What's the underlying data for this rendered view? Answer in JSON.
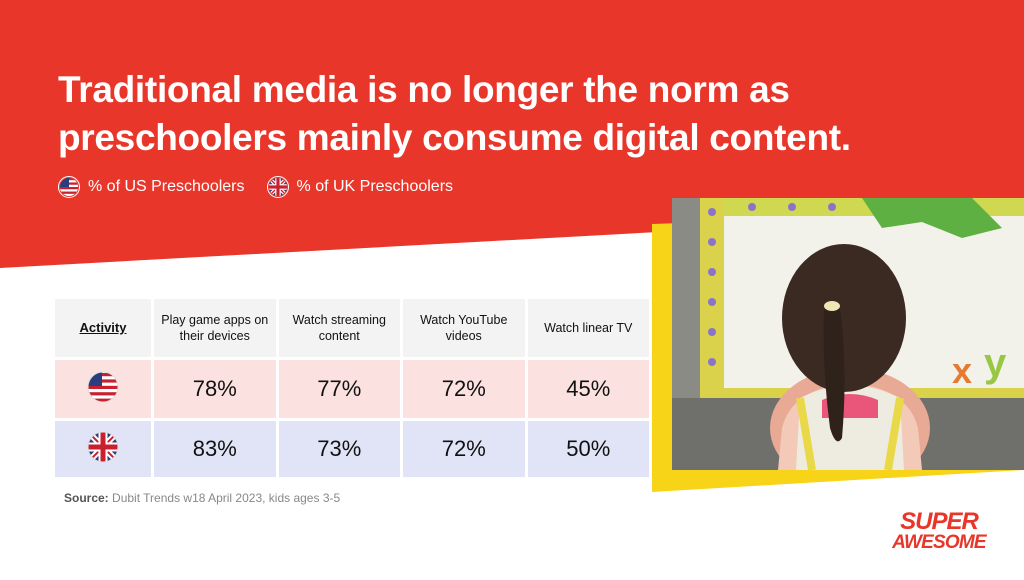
{
  "headline": "Traditional media is no longer the norm as preschoolers mainly consume digital content.",
  "legend": [
    {
      "flag": "us-flag-icon",
      "label": "% of US Preschoolers"
    },
    {
      "flag": "uk-flag-icon",
      "label": "% of UK Preschoolers"
    }
  ],
  "colors": {
    "brand_red": "#e8372a",
    "accent_yellow": "#f7d417",
    "us_row": "#fbe2e0",
    "uk_row": "#e1e4f6"
  },
  "chart_data": {
    "type": "table",
    "header_label": "Activity",
    "categories": [
      "Play game apps on their devices",
      "Watch streaming content",
      "Watch YouTube videos",
      "Watch linear TV"
    ],
    "series": [
      {
        "name": "% of US Preschoolers",
        "flag": "us-flag-icon",
        "values": [
          "78%",
          "77%",
          "72%",
          "45%"
        ]
      },
      {
        "name": "% of UK Preschoolers",
        "flag": "uk-flag-icon",
        "values": [
          "83%",
          "73%",
          "72%",
          "50%"
        ]
      }
    ]
  },
  "source": {
    "label": "Source:",
    "text": "Dubit Trends w18 April 2023, kids ages 3-5"
  },
  "logo": {
    "line1": "SUPER",
    "line2": "AWESOME"
  }
}
